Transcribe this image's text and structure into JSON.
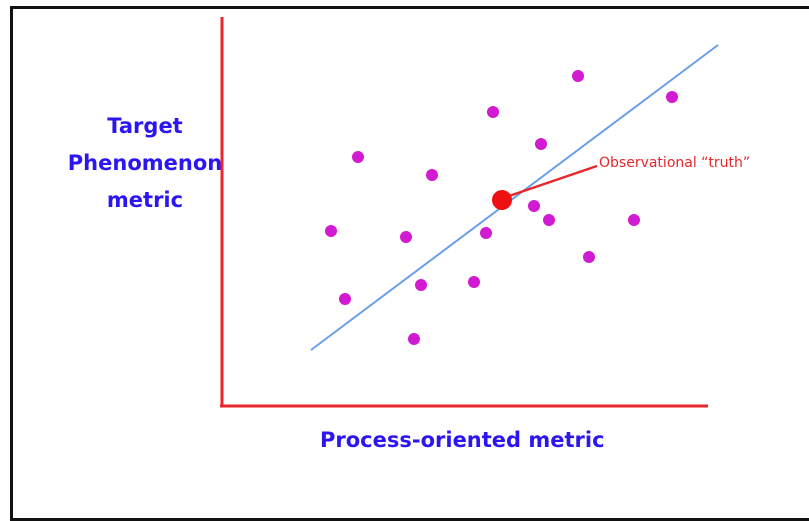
{
  "diagram": {
    "y_axis_label_lines": [
      "Target",
      "Phenomenon",
      "metric"
    ],
    "x_axis_label": "Process-oriented metric",
    "annotation": "Observational “truth”",
    "colors": {
      "axes": "#e8262b",
      "labels": "#2b16f2",
      "points": "#d11ad1",
      "fit_line": "#6aa0e8",
      "truth_point": "#ee1111",
      "annotation": "#e8262b"
    }
  }
}
